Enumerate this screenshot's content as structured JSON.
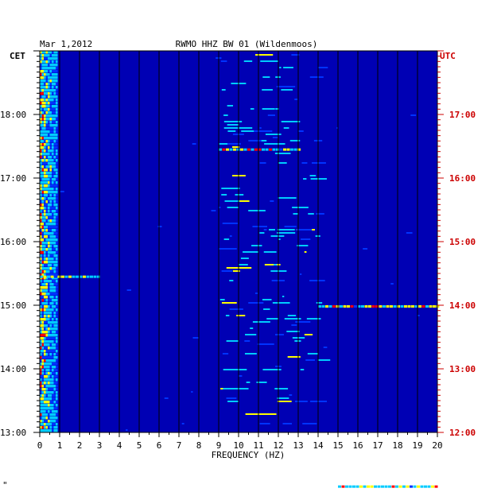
{
  "header": {
    "date": "Mar 1,2012",
    "station": "RWMO HHZ BW 01 (Wildenmoos)"
  },
  "left_axis_label": "CET",
  "right_axis_label": "UTC",
  "footer_mark": "\"",
  "colors": {
    "background": "#0000b4",
    "left_text": "#000000",
    "right_text": "#cc0000"
  },
  "chart_data": {
    "type": "heatmap",
    "title": "RWMO HHZ BW 01 (Wildenmoos)",
    "xlabel": "FREQUENCY (HZ)",
    "ylabel": "",
    "xlim": [
      0,
      20
    ],
    "x_ticks": [
      "0",
      "1",
      "2",
      "3",
      "4",
      "5",
      "6",
      "7",
      "8",
      "9",
      "10",
      "11",
      "12",
      "13",
      "14",
      "15",
      "16",
      "17",
      "18",
      "19",
      "20"
    ],
    "y_left_ticks": [
      "18:00",
      "17:00",
      "16:00",
      "15:00",
      "14:00",
      "13:00"
    ],
    "y_right_ticks": [
      "17:00",
      "16:00",
      "15:00",
      "14:00",
      "13:00",
      "12:00"
    ],
    "y_range_cet": [
      "13:00",
      "19:00"
    ],
    "y_range_utc": [
      "12:00",
      "18:00"
    ],
    "grid": true,
    "colormap": [
      "#0000b4",
      "#0033ff",
      "#00ccff",
      "#ffff00",
      "#ff0000"
    ],
    "features": [
      {
        "kind": "low-frequency band",
        "freq_range_hz": [
          0,
          0.8
        ],
        "intensity": "very high"
      },
      {
        "kind": "broadband activity",
        "freq_range_hz": [
          9,
          14
        ],
        "intensity": "moderate"
      },
      {
        "kind": "event line",
        "time_cet": "17:28",
        "freq_range_hz": [
          9,
          13
        ],
        "intensity": "high"
      },
      {
        "kind": "event line",
        "time_cet": "15:00",
        "freq_range_hz": [
          14,
          20
        ],
        "intensity": "moderate"
      },
      {
        "kind": "event line",
        "time_cet": "15:28",
        "freq_range_hz": [
          0,
          3
        ],
        "intensity": "moderate"
      },
      {
        "kind": "event line",
        "time_cet": "12:10",
        "freq_range_hz": [
          15,
          20
        ],
        "intensity": "moderate"
      }
    ]
  }
}
